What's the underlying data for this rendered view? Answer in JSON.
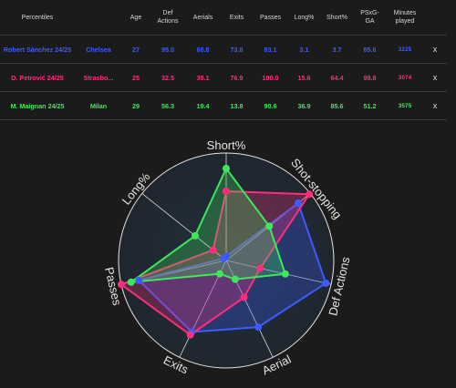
{
  "table": {
    "headers": [
      "Percentiles",
      "Age",
      "Def\nActions",
      "Aerials",
      "Exits",
      "Passes",
      "Long%",
      "Short%",
      "PSxG-\nGA",
      "Minutes\nplayed"
    ],
    "rows": [
      {
        "name": "Robert Sánchez 24/25",
        "team": "Chelsea",
        "age": "27",
        "def_actions": "95.0",
        "aerials": "68.8",
        "exits": "73.8",
        "passes": "83.1",
        "long": "3.1",
        "short": "3.7",
        "psxg": "85.6",
        "minutes": "3225",
        "close": "x",
        "color": "#3d5cff"
      },
      {
        "name": "D. Petrović 24/25",
        "team": "Strasbo...",
        "age": "25",
        "def_actions": "32.5",
        "aerials": "38.1",
        "exits": "76.9",
        "passes": "100.0",
        "long": "15.6",
        "short": "64.4",
        "psxg": "98.8",
        "minutes": "3074",
        "close": "x",
        "color": "#ff2d7d"
      },
      {
        "name": "M. Maignan 24/25",
        "team": "Milan",
        "age": "29",
        "def_actions": "56.3",
        "aerials": "19.4",
        "exits": "13.8",
        "passes": "90.6",
        "long": "36.9",
        "short": "85.6",
        "psxg": "51.2",
        "minutes": "3575",
        "close": "x",
        "color": "#3ee85a"
      }
    ]
  },
  "chart_data": {
    "type": "radar",
    "axes": [
      "Short%",
      "Shot-stopping",
      "Def Actions",
      "Aerial",
      "Exits",
      "Passes",
      "Long%"
    ],
    "rmax": 100,
    "series": [
      {
        "name": "Robert Sánchez 24/25",
        "color": "#3d5cff",
        "values": [
          3.7,
          85.6,
          95.0,
          68.8,
          73.8,
          83.1,
          3.1
        ]
      },
      {
        "name": "D. Petrović 24/25",
        "color": "#ff2d7d",
        "values": [
          64.4,
          98.8,
          32.5,
          38.1,
          76.9,
          100.0,
          15.6
        ]
      },
      {
        "name": "M. Maignan 24/25",
        "color": "#3ee85a",
        "values": [
          85.6,
          51.2,
          56.3,
          19.4,
          13.8,
          90.6,
          36.9
        ]
      }
    ]
  }
}
